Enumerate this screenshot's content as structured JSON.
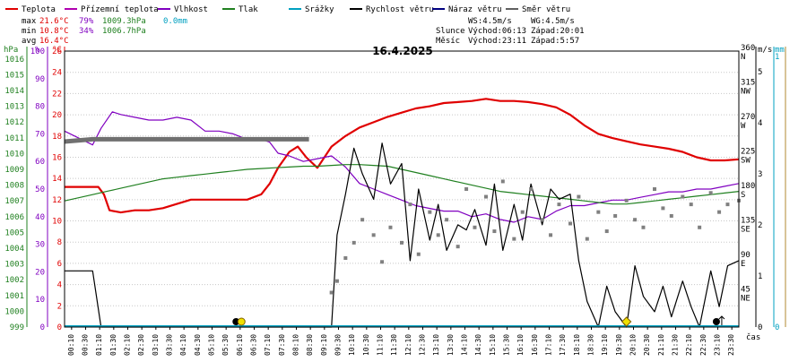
{
  "chart_data": {
    "type": "line",
    "title": "16.4.2025",
    "legend": [
      {
        "label": "Teplota",
        "color": "#e00000"
      },
      {
        "label": "Přízemní teplota",
        "color": "#b000b0"
      },
      {
        "label": "Vlhkost",
        "color": "#8000c0"
      },
      {
        "label": "Tlak",
        "color": "#208020"
      },
      {
        "label": "Srážky",
        "color": "#00a0c0"
      },
      {
        "label": "Rychlost větru",
        "color": "#000000"
      },
      {
        "label": "Náraz větru",
        "color": "#000080"
      },
      {
        "label": "Směr větru",
        "color": "#606060"
      }
    ],
    "stats": {
      "max_label": "max",
      "max_temp": "21.6°C",
      "max_hum": "79%",
      "max_press": "1009.3hPa",
      "max_rain": "0.0mm",
      "min_label": "min",
      "min_temp": "10.8°C",
      "min_hum": "34%",
      "min_press": "1006.7hPa",
      "avg_label": "avg",
      "avg_temp": "16.4°C"
    },
    "wind_info": {
      "ws": "WS:4.5m/s",
      "wg": "WG:4.5m/s"
    },
    "sun": {
      "label": "Slunce",
      "rise": "Východ:06:13",
      "set": "Západ:20:01"
    },
    "moon": {
      "label": "Měsíc",
      "rise": "Východ:23:11",
      "set": "Západ:5:57"
    },
    "axes": {
      "press_unit": "hPa",
      "hum_unit": "%",
      "temp_unit": "°C",
      "dir_unit_ms": "m/s",
      "rain_unit": "mm",
      "x_unit": "čas",
      "press_ticks": [
        "1016",
        "1015",
        "1014",
        "1013",
        "1012",
        "1011",
        "1010",
        "1009",
        "1008",
        "1007",
        "1006",
        "1005",
        "1004",
        "1003",
        "1002",
        "1001",
        "1000",
        "999"
      ],
      "press_range": [
        999,
        1016.5
      ],
      "hum_ticks": [
        "100",
        "90",
        "80",
        "70",
        "60",
        "50",
        "40",
        "30",
        "20",
        "10",
        "0"
      ],
      "hum_range": [
        0,
        100
      ],
      "temp_ticks": [
        "26",
        "24",
        "22",
        "20",
        "18",
        "16",
        "14",
        "12",
        "10",
        "8",
        "6",
        "4",
        "2",
        "0"
      ],
      "temp_range": [
        0,
        26
      ],
      "dir_ticks": [
        {
          "deg": "360",
          "lbl": "N"
        },
        {
          "deg": "315",
          "lbl": "NW"
        },
        {
          "deg": "270",
          "lbl": "W"
        },
        {
          "deg": "225",
          "lbl": "SW"
        },
        {
          "deg": "180",
          "lbl": "S"
        },
        {
          "deg": "135",
          "lbl": "SE"
        },
        {
          "deg": "90",
          "lbl": "E"
        },
        {
          "deg": "45",
          "lbl": "NE"
        }
      ],
      "dir_range": [
        0,
        360
      ],
      "wind_ticks": [
        "5",
        "4",
        "3",
        "2",
        "1",
        "0"
      ],
      "wind_range": [
        0,
        5.4
      ],
      "rain_ticks": [
        "1",
        "0"
      ],
      "rain_range": [
        0,
        1.0
      ],
      "x_range": [
        0,
        24
      ],
      "x_ticks": [
        "00:10",
        "00:30",
        "01:10",
        "01:30",
        "02:10",
        "02:30",
        "03:10",
        "03:30",
        "04:10",
        "04:30",
        "05:10",
        "05:30",
        "06:10",
        "06:30",
        "07:10",
        "07:30",
        "08:10",
        "08:30",
        "09:10",
        "09:30",
        "10:10",
        "10:30",
        "11:10",
        "11:30",
        "12:10",
        "12:30",
        "13:10",
        "13:30",
        "14:10",
        "14:30",
        "15:10",
        "15:30",
        "16:10",
        "16:30",
        "17:10",
        "17:30",
        "18:10",
        "18:30",
        "19:10",
        "19:30",
        "20:10",
        "20:30",
        "21:10",
        "21:30",
        "22:10",
        "22:30",
        "23:10",
        "23:30"
      ]
    },
    "series": [
      {
        "name": "Teplota",
        "axis": "temp",
        "x": [
          0,
          1.2,
          1.4,
          1.6,
          2,
          2.5,
          3,
          3.5,
          4,
          4.5,
          5,
          5.5,
          6,
          6.5,
          7,
          7.3,
          7.6,
          8,
          8.3,
          8.6,
          9,
          9.5,
          10,
          10.5,
          11,
          11.5,
          12,
          12.5,
          13,
          13.5,
          14,
          14.5,
          15,
          15.5,
          16,
          16.5,
          17,
          17.5,
          18,
          18.5,
          19,
          19.5,
          20,
          20.5,
          21,
          21.5,
          22,
          22.5,
          23,
          23.5,
          24
        ],
        "y": [
          13.2,
          13.2,
          12.5,
          11,
          10.8,
          11,
          11,
          11.2,
          11.6,
          12,
          12,
          12,
          12,
          12,
          12.5,
          13.5,
          15,
          16.5,
          17,
          16,
          15,
          17,
          18,
          18.8,
          19.3,
          19.8,
          20.2,
          20.6,
          20.8,
          21.1,
          21.2,
          21.3,
          21.5,
          21.3,
          21.3,
          21.2,
          21,
          20.7,
          20,
          19,
          18.2,
          17.8,
          17.5,
          17.2,
          17,
          16.8,
          16.5,
          16,
          15.7,
          15.7,
          15.8
        ]
      },
      {
        "name": "Vlhkost",
        "axis": "hum",
        "x": [
          0,
          1,
          1.3,
          1.7,
          2,
          2.5,
          3,
          3.5,
          4,
          4.5,
          5,
          5.5,
          6,
          6.5,
          7,
          7.3,
          7.6,
          8,
          8.5,
          9,
          9.5,
          10,
          10.5,
          11,
          11.5,
          12,
          12.5,
          13,
          13.5,
          14,
          14.5,
          15,
          15.5,
          16,
          16.5,
          17,
          17.5,
          18,
          18.5,
          19,
          19.5,
          20,
          20.5,
          21,
          21.5,
          22,
          22.5,
          23,
          23.5,
          24
        ],
        "y": [
          71,
          66,
          72,
          78,
          77,
          76,
          75,
          75,
          76,
          75,
          71,
          71,
          70,
          68,
          68,
          67,
          63,
          62,
          60,
          61,
          62,
          58,
          52,
          50,
          48,
          46,
          44,
          43,
          42,
          42,
          40,
          41,
          39,
          38,
          40,
          39,
          42,
          44,
          44,
          45,
          46,
          46,
          47,
          48,
          49,
          49,
          50,
          50,
          51,
          52
        ]
      },
      {
        "name": "Tlak",
        "axis": "press",
        "x": [
          0,
          0.5,
          1,
          1.5,
          2,
          2.5,
          3,
          3.5,
          4,
          4.5,
          5,
          5.5,
          6,
          6.5,
          7,
          7.5,
          8,
          8.5,
          9,
          9.5,
          10,
          10.5,
          11,
          11.5,
          12,
          12.5,
          13,
          13.5,
          14,
          14.5,
          15,
          15.5,
          16,
          16.5,
          17,
          17.5,
          18,
          18.5,
          19,
          19.5,
          20,
          20.5,
          21,
          21.5,
          22,
          22.5,
          23,
          23.5,
          24
        ],
        "y": [
          1007,
          1007.2,
          1007.4,
          1007.6,
          1007.8,
          1008,
          1008.2,
          1008.4,
          1008.5,
          1008.6,
          1008.7,
          1008.8,
          1008.9,
          1009,
          1009.05,
          1009.1,
          1009.15,
          1009.2,
          1009.2,
          1009.25,
          1009.3,
          1009.3,
          1009.25,
          1009.2,
          1009.0,
          1008.8,
          1008.6,
          1008.4,
          1008.2,
          1008.0,
          1007.8,
          1007.6,
          1007.5,
          1007.4,
          1007.3,
          1007.2,
          1007.1,
          1007.0,
          1006.9,
          1006.8,
          1006.8,
          1006.9,
          1007.0,
          1007.1,
          1007.2,
          1007.3,
          1007.4,
          1007.5,
          1007.6
        ]
      },
      {
        "name": "Rychlost větru",
        "axis": "wind",
        "x": [
          0,
          1.0,
          1.3,
          2,
          9.5,
          9.7,
          10,
          10.3,
          10.6,
          11,
          11.3,
          11.6,
          12,
          12.3,
          12.6,
          13,
          13.3,
          13.6,
          14,
          14.3,
          14.6,
          15,
          15.3,
          15.6,
          16,
          16.3,
          16.6,
          17,
          17.3,
          17.6,
          18,
          18.3,
          18.6,
          19,
          19.3,
          19.6,
          20,
          20.3,
          20.6,
          21,
          21.3,
          21.6,
          22,
          22.3,
          22.6,
          23,
          23.3,
          23.6,
          24
        ],
        "y": [
          1.1,
          1.1,
          0,
          0,
          0,
          1.8,
          2.6,
          3.5,
          3,
          2.5,
          3.6,
          2.8,
          3.2,
          1.3,
          2.7,
          1.7,
          2.4,
          1.5,
          2.0,
          1.9,
          2.3,
          1.6,
          2.8,
          1.5,
          2.4,
          1.7,
          2.8,
          2.0,
          2.7,
          2.5,
          2.6,
          1.3,
          0.5,
          0,
          0.8,
          0.3,
          0,
          1.2,
          0.6,
          0.3,
          0.8,
          0.2,
          0.9,
          0.4,
          0,
          1.1,
          0.4,
          1.2,
          1.3
        ]
      },
      {
        "name": "Směr větru",
        "axis": "dir",
        "x": [
          0,
          1,
          2,
          3,
          4,
          5,
          6,
          7,
          8,
          8.7,
          9.5,
          9.7,
          10,
          10.3,
          10.6,
          11,
          11.3,
          11.6,
          12,
          12.3,
          12.6,
          13,
          13.3,
          13.6,
          14,
          14.3,
          14.6,
          15,
          15.3,
          15.6,
          16,
          16.3,
          16.6,
          17,
          17.3,
          17.6,
          18,
          18.3,
          18.6,
          19,
          19.3,
          19.6,
          20,
          20.3,
          20.6,
          21,
          21.3,
          21.6,
          22,
          22.3,
          22.6,
          23,
          23.3,
          23.6,
          24
        ],
        "y": [
          242,
          245,
          245,
          245,
          245,
          245,
          245,
          245,
          245,
          245,
          45,
          60,
          90,
          110,
          140,
          120,
          85,
          130,
          110,
          160,
          95,
          150,
          120,
          140,
          105,
          180,
          130,
          170,
          125,
          190,
          115,
          150,
          180,
          140,
          120,
          160,
          135,
          170,
          115,
          150,
          125,
          145,
          165,
          140,
          130,
          180,
          155,
          145,
          170,
          160,
          130,
          175,
          150,
          160,
          165
        ]
      }
    ],
    "markers": [
      {
        "name": "sunrise",
        "x": 6.2
      },
      {
        "name": "sunset",
        "x": 20.0
      },
      {
        "name": "moonrise",
        "x": 23.2
      }
    ]
  }
}
